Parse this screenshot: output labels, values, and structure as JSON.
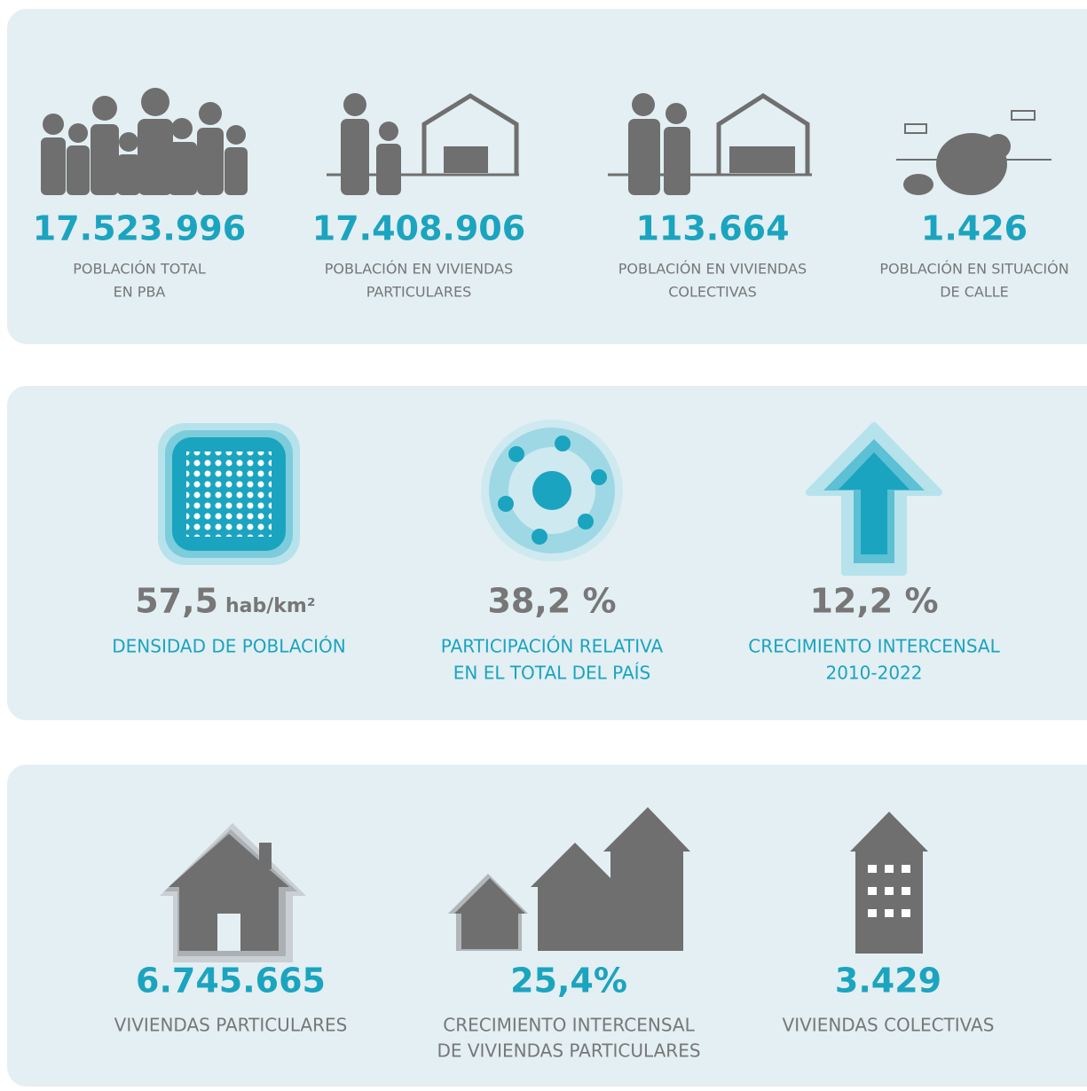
{
  "panels": [
    {
      "items": [
        {
          "value": "17.523.996",
          "label": [
            "POBLACIÓN TOTAL",
            "EN PBA"
          ]
        },
        {
          "value": "17.408.906",
          "label": [
            "POBLACIÓN EN VIVIENDAS",
            "PARTICULARES"
          ]
        },
        {
          "value": "113.664",
          "label": [
            "POBLACIÓN EN VIVIENDAS",
            "COLECTIVAS"
          ]
        },
        {
          "value": "1.426",
          "label": [
            "POBLACIÓN EN SITUACIÓN",
            "DE CALLE"
          ]
        }
      ]
    },
    {
      "items": [
        {
          "value": "57,5",
          "unit": "hab/km²",
          "label": [
            "DENSIDAD DE POBLACIÓN"
          ]
        },
        {
          "value": "38,2 %",
          "label": [
            "PARTICIPACIÓN RELATIVA",
            "EN EL TOTAL DEL PAÍS"
          ]
        },
        {
          "value": "12,2 %",
          "label": [
            "CRECIMIENTO INTERCENSAL",
            "2010-2022"
          ]
        }
      ]
    },
    {
      "items": [
        {
          "value": "6.745.665",
          "label": [
            "VIVIENDAS PARTICULARES"
          ]
        },
        {
          "value": "25,4%",
          "label": [
            "CRECIMIENTO INTERCENSAL",
            "DE VIVIENDAS PARTICULARES"
          ]
        },
        {
          "value": "3.429",
          "label": [
            "VIVIENDAS COLECTIVAS"
          ]
        }
      ]
    }
  ]
}
